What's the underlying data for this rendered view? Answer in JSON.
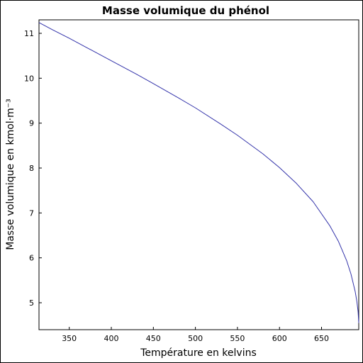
{
  "chart_data": {
    "type": "line",
    "title": "Masse volumique du phénol",
    "xlabel": "Température en kelvins",
    "ylabel": "Masse volumique en kmol·m⁻³",
    "xlim": [
      314,
      694.25
    ],
    "ylim": [
      4.4,
      11.3
    ],
    "xticks": [
      350,
      400,
      450,
      500,
      550,
      600,
      650
    ],
    "yticks": [
      5,
      6,
      7,
      8,
      9,
      10,
      11
    ],
    "grid": false,
    "series": [
      {
        "color": "#3333aa",
        "x": [
          314,
          330,
          350,
          370,
          400,
          430,
          450,
          480,
          500,
          530,
          550,
          580,
          600,
          620,
          640,
          660,
          670,
          680,
          685,
          690,
          692,
          693.5,
          694.25
        ],
        "y": [
          11.24,
          11.08,
          10.89,
          10.69,
          10.39,
          10.09,
          9.88,
          9.56,
          9.34,
          8.98,
          8.73,
          8.32,
          8.01,
          7.66,
          7.25,
          6.71,
          6.37,
          5.93,
          5.64,
          5.25,
          5.03,
          4.8,
          4.55
        ]
      }
    ]
  }
}
